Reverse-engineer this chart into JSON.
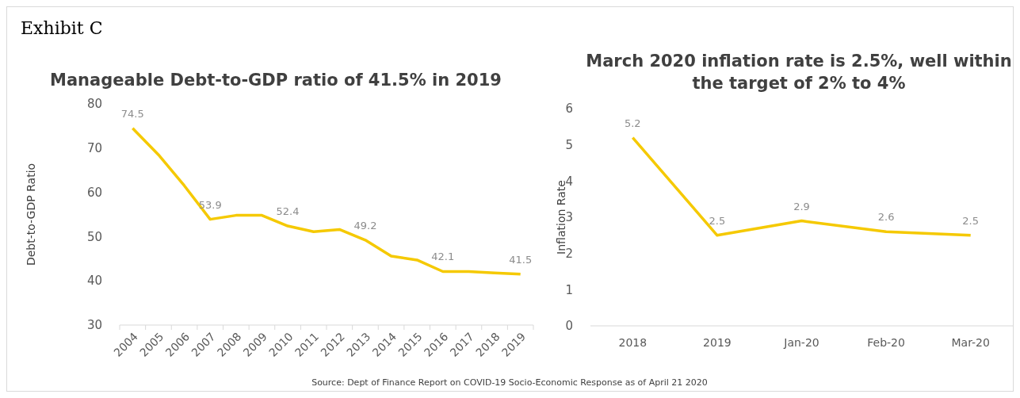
{
  "chart_data": [
    {
      "type": "line",
      "title": "Manageable Debt-to-GDP ratio of 41.5% in 2019",
      "ylabel": "Debt-to-GDP Ratio",
      "annotations": [
        "Exhibit C"
      ],
      "categories": [
        "2004",
        "2005",
        "2006",
        "2007",
        "2008",
        "2009",
        "2010",
        "2011",
        "2012",
        "2013",
        "2014",
        "2015",
        "2016",
        "2017",
        "2018",
        "2019"
      ],
      "series": [
        {
          "color": "#f5c900",
          "values": [
            74.5,
            68.5,
            61.5,
            53.9,
            54.8,
            54.8,
            52.4,
            51.1,
            51.6,
            49.2,
            45.6,
            44.7,
            42.1,
            42.1,
            41.8,
            41.5
          ],
          "value_labels": [
            "74.5",
            null,
            null,
            "53.9",
            null,
            null,
            "52.4",
            null,
            null,
            "49.2",
            null,
            null,
            "42.1",
            null,
            null,
            "41.5"
          ]
        }
      ],
      "ylim": [
        30,
        80
      ],
      "yticks": [
        30,
        40,
        50,
        60,
        70,
        80
      ],
      "grid": false,
      "marker": "none"
    },
    {
      "type": "line",
      "title": "March 2020 inflation rate is 2.5%, well within the target of 2% to 4%",
      "ylabel": "Inflation Rate",
      "annotations": [
        "Source: Dept of Finance Report on COVID-19 Socio-Economic Response as of April 21 2020"
      ],
      "categories": [
        "2018",
        "2019",
        "Jan-20",
        "Feb-20",
        "Mar-20"
      ],
      "series": [
        {
          "color": "#f5c900",
          "values": [
            5.2,
            2.5,
            2.9,
            2.6,
            2.5
          ]
        }
      ],
      "ylim": [
        0,
        6
      ],
      "yticks": [
        0,
        1,
        2,
        3,
        4,
        5,
        6
      ],
      "grid": false,
      "marker": "none",
      "data_labels": true
    }
  ]
}
